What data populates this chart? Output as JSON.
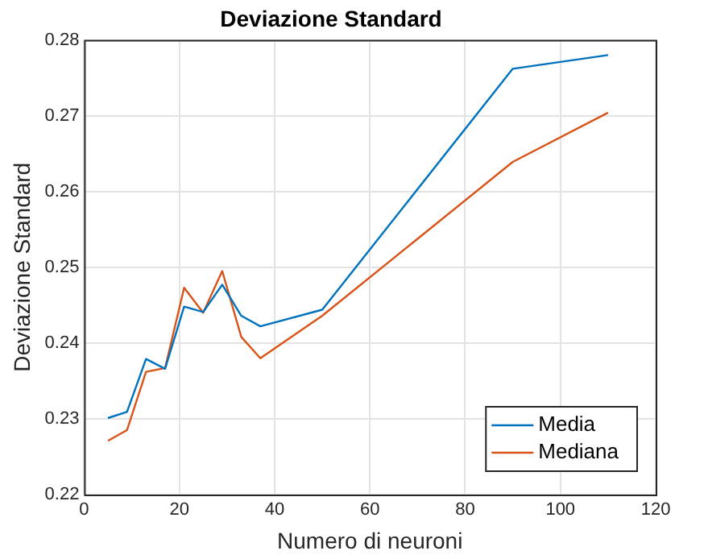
{
  "chart_data": {
    "type": "line",
    "title": "Deviazione Standard",
    "xlabel": "Numero di neuroni",
    "ylabel": "Deviazione Standard",
    "x": [
      5,
      9,
      13,
      17,
      21,
      25,
      29,
      33,
      37,
      50,
      90,
      110
    ],
    "series": [
      {
        "name": "Media",
        "color": "#0072bd",
        "values": [
          0.2301,
          0.2309,
          0.2379,
          0.2366,
          0.2448,
          0.2441,
          0.2477,
          0.2436,
          0.2422,
          0.2444,
          0.2762,
          0.278
        ]
      },
      {
        "name": "Mediana",
        "color": "#d95319",
        "values": [
          0.2271,
          0.2285,
          0.2362,
          0.2367,
          0.2473,
          0.244,
          0.2495,
          0.2408,
          0.238,
          0.2436,
          0.2639,
          0.2704
        ]
      }
    ],
    "xlim": [
      0,
      120
    ],
    "xticks": [
      0,
      20,
      40,
      60,
      80,
      100,
      120
    ],
    "ylim": [
      0.22,
      0.28
    ],
    "yticks": [
      0.22,
      0.23,
      0.24,
      0.25,
      0.26,
      0.27,
      0.28
    ],
    "grid": true,
    "legend": "bottom right",
    "marker": "none",
    "line_style": "solid"
  }
}
